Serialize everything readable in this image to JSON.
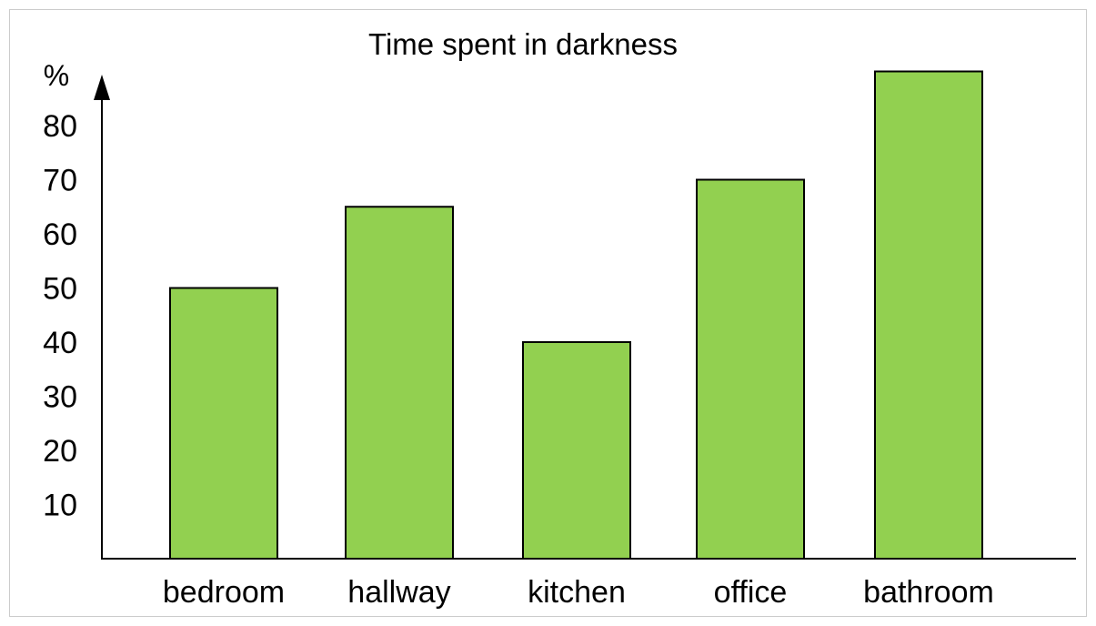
{
  "chart_data": {
    "type": "bar",
    "title": "Time spent in darkness",
    "ylabel": "%",
    "xlabel": "",
    "categories": [
      "bedroom",
      "hallway",
      "kitchen",
      "office",
      "bathroom"
    ],
    "values": [
      50,
      65,
      40,
      70,
      90
    ],
    "yticks": [
      10,
      20,
      30,
      40,
      50,
      60,
      70,
      80
    ],
    "ylim": [
      0,
      90
    ],
    "grid": false,
    "legend": "none",
    "colors": {
      "bar": "#92d050",
      "bar_outline": "#000000",
      "frame": "#cccccc"
    }
  }
}
